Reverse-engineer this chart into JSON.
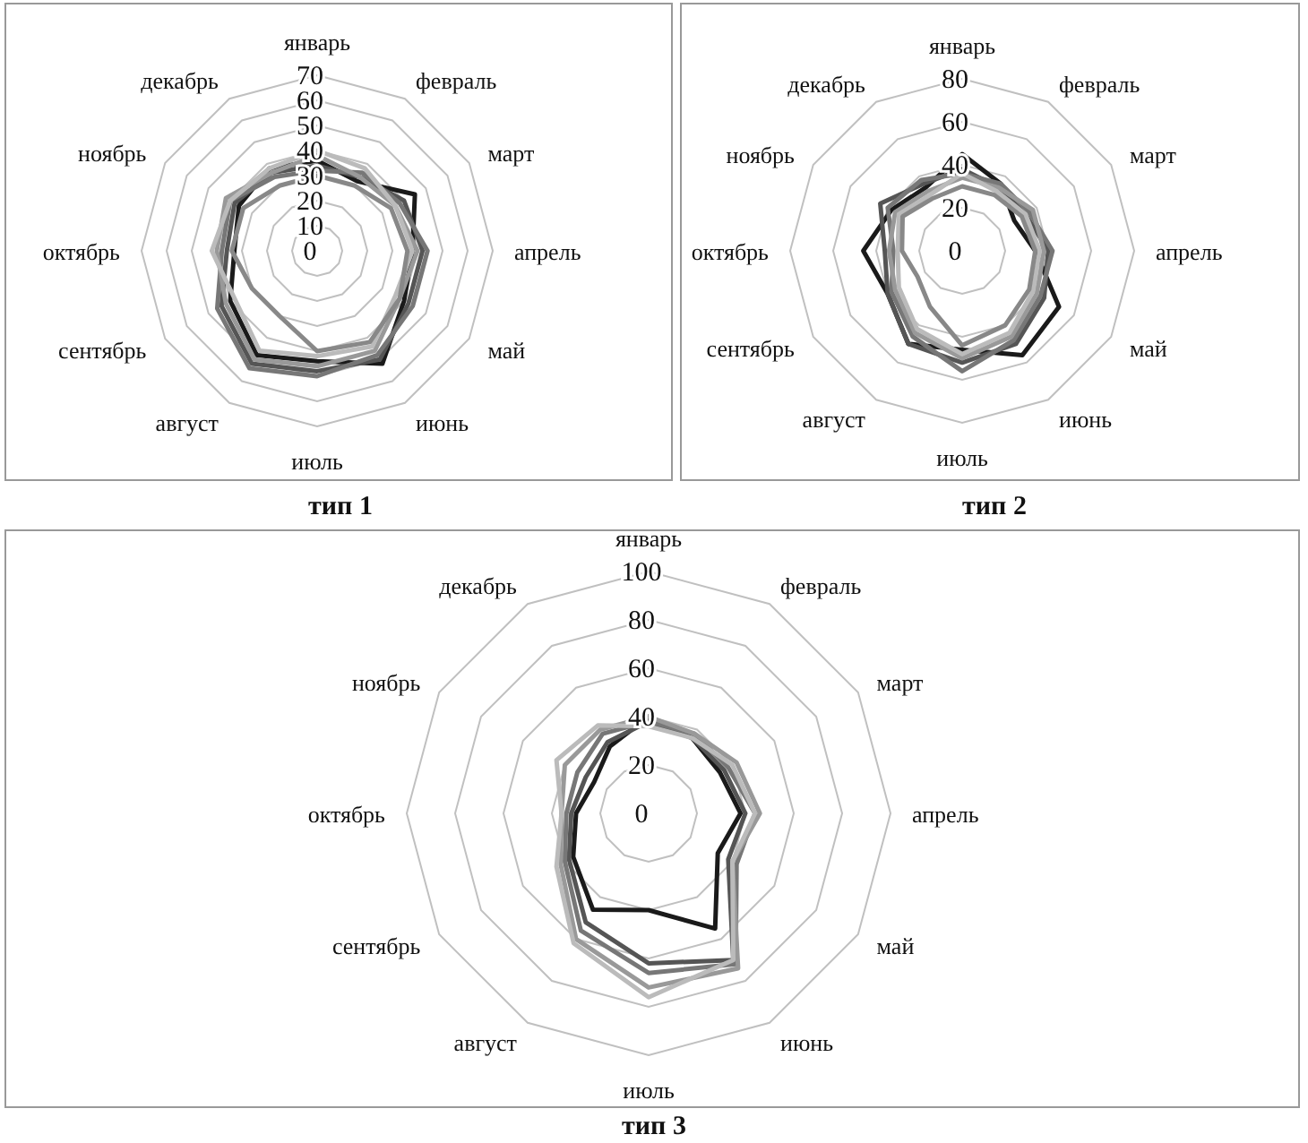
{
  "chart_data": [
    {
      "type": "radar",
      "title": "тип 1",
      "categories": [
        "январь",
        "февраль",
        "март",
        "апрель",
        "май",
        "июнь",
        "июль",
        "август",
        "сентябрь",
        "октябрь",
        "ноябрь",
        "декабрь"
      ],
      "ylim": [
        0,
        70
      ],
      "yticks": [
        0,
        10,
        20,
        30,
        40,
        50,
        60,
        70
      ],
      "grid": true,
      "series": [
        {
          "color": "#1a1a1a",
          "values": [
            36,
            32,
            45,
            38,
            40,
            52,
            44,
            48,
            40,
            33,
            36,
            38
          ]
        },
        {
          "color": "#555555",
          "values": [
            34,
            34,
            40,
            42,
            42,
            50,
            48,
            52,
            44,
            36,
            38,
            36
          ]
        },
        {
          "color": "#777777",
          "values": [
            32,
            36,
            38,
            44,
            44,
            48,
            50,
            54,
            46,
            38,
            40,
            34
          ]
        },
        {
          "color": "#999999",
          "values": [
            38,
            34,
            36,
            40,
            38,
            46,
            46,
            50,
            42,
            40,
            42,
            36
          ]
        },
        {
          "color": "#bbbbbb",
          "values": [
            40,
            38,
            36,
            38,
            36,
            44,
            42,
            46,
            38,
            42,
            40,
            38
          ]
        },
        {
          "color": "#888888",
          "values": [
            30,
            30,
            34,
            36,
            38,
            42,
            40,
            30,
            30,
            34,
            34,
            30
          ]
        }
      ]
    },
    {
      "type": "radar",
      "title": "тип 2",
      "categories": [
        "январь",
        "февраль",
        "март",
        "апрель",
        "май",
        "июнь",
        "июль",
        "август",
        "сентябрь",
        "октябрь",
        "ноябрь",
        "декабрь"
      ],
      "ylim": [
        0,
        80
      ],
      "yticks": [
        0,
        20,
        40,
        60,
        80
      ],
      "grid": true,
      "series": [
        {
          "color": "#1a1a1a",
          "values": [
            45,
            36,
            28,
            34,
            52,
            56,
            46,
            50,
            40,
            46,
            38,
            34
          ]
        },
        {
          "color": "#555555",
          "values": [
            38,
            34,
            34,
            40,
            44,
            50,
            52,
            50,
            40,
            36,
            44,
            36
          ]
        },
        {
          "color": "#777777",
          "values": [
            36,
            36,
            36,
            42,
            42,
            48,
            56,
            46,
            38,
            32,
            40,
            38
          ]
        },
        {
          "color": "#999999",
          "values": [
            34,
            34,
            38,
            38,
            40,
            46,
            50,
            44,
            36,
            34,
            36,
            32
          ]
        },
        {
          "color": "#bbbbbb",
          "values": [
            36,
            32,
            34,
            36,
            38,
            44,
            48,
            42,
            34,
            30,
            34,
            30
          ]
        },
        {
          "color": "#888888",
          "values": [
            30,
            30,
            32,
            34,
            36,
            40,
            44,
            30,
            24,
            28,
            32,
            28
          ]
        }
      ]
    },
    {
      "type": "radar",
      "title": "тип 3",
      "categories": [
        "январь",
        "февраль",
        "март",
        "апрель",
        "май",
        "июнь",
        "июль",
        "август",
        "сентябрь",
        "октябрь",
        "ноябрь",
        "декабрь"
      ],
      "ylim": [
        0,
        100
      ],
      "yticks": [
        0,
        20,
        40,
        60,
        80,
        100
      ],
      "grid": true,
      "series": [
        {
          "color": "#1a1a1a",
          "values": [
            40,
            36,
            34,
            38,
            33,
            55,
            40,
            46,
            36,
            30,
            26,
            32
          ]
        },
        {
          "color": "#555555",
          "values": [
            38,
            36,
            36,
            40,
            38,
            70,
            62,
            52,
            38,
            32,
            30,
            34
          ]
        },
        {
          "color": "#777777",
          "values": [
            38,
            38,
            38,
            44,
            42,
            72,
            66,
            56,
            40,
            34,
            34,
            38
          ]
        },
        {
          "color": "#999999",
          "values": [
            40,
            38,
            42,
            46,
            40,
            74,
            72,
            60,
            42,
            36,
            40,
            40
          ]
        },
        {
          "color": "#bbbbbb",
          "values": [
            36,
            36,
            40,
            44,
            40,
            70,
            76,
            62,
            44,
            36,
            44,
            42
          ]
        }
      ]
    }
  ]
}
